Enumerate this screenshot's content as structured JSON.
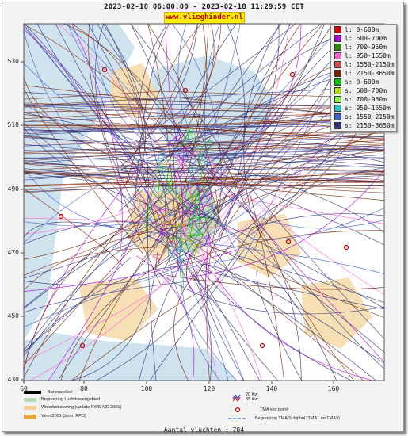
{
  "header": {
    "title": "2023-02-18 06:00:00 - 2023-02-18 11:29:59 CET",
    "site": "www.vlieghinder.nl"
  },
  "axes": {
    "y_ticks": [
      "530",
      "510",
      "490",
      "470",
      "450",
      "430"
    ],
    "x_ticks": [
      "60",
      "80",
      "100",
      "120",
      "140",
      "160"
    ]
  },
  "legend": [
    {
      "label": "l: 0-600m",
      "color": "#e00000"
    },
    {
      "label": "l: 600-700m",
      "color": "#b000e0"
    },
    {
      "label": "l: 700-950m",
      "color": "#2a8a00"
    },
    {
      "label": "l: 950-1550m",
      "color": "#ff60d0"
    },
    {
      "label": "l: 1550-2150m",
      "color": "#d04848"
    },
    {
      "label": "l: 2150-3650m",
      "color": "#7a2200"
    },
    {
      "label": "s: 0-600m",
      "color": "#00c000"
    },
    {
      "label": "s: 600-700m",
      "color": "#a8e000"
    },
    {
      "label": "s: 700-950m",
      "color": "#80ff40"
    },
    {
      "label": "s: 950-1550m",
      "color": "#20c0c0"
    },
    {
      "label": "s: 1550-2150m",
      "color": "#4060d0"
    },
    {
      "label": "s: 2150-3650m",
      "color": "#303080"
    }
  ],
  "bottom_legend": {
    "scale_label": "Banenstelsel",
    "items": [
      {
        "label": "Begrenzing Luchthavengebied",
        "color": "#b7d8b0"
      },
      {
        "label": "Woonbebouwing (update RWS-MD 2001)",
        "color": "#f4cf90"
      },
      {
        "label": "Vinex2001 (bron: RPD)",
        "color": "#e6a63a"
      }
    ],
    "wind_labels": [
      "20 Kw",
      "35 Kw"
    ],
    "tma_exit": "TMA exit point",
    "tma_border": "Begrenzing TMA Schiphol  (TMA1 en TMA3)"
  },
  "flight_count": "Aantal vluchten : 704",
  "colors": {
    "water": "#cfe3ee",
    "land": "#ffffff",
    "airport": "#c5dcc0",
    "urban": "#f5d9a8",
    "arrival": "#303080",
    "departure": "#7a2200"
  }
}
